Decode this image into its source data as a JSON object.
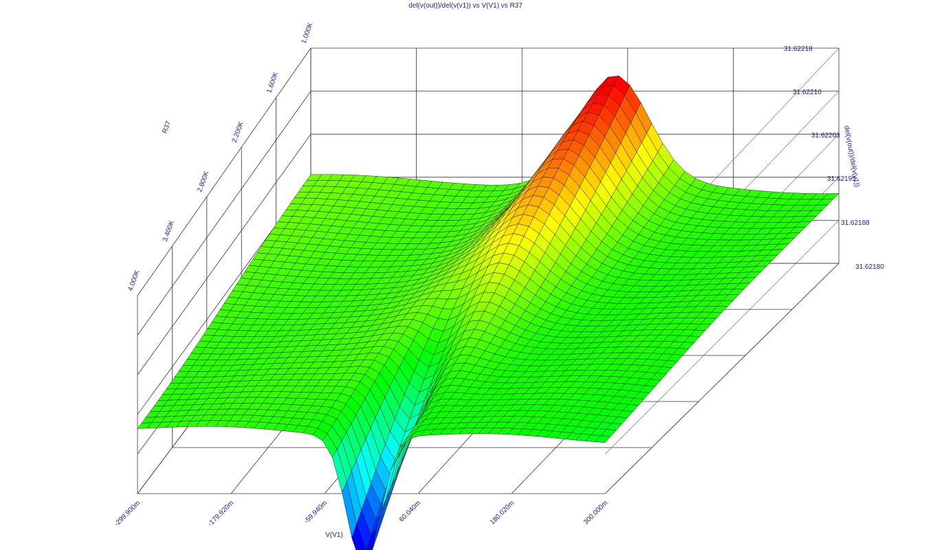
{
  "chart_data": {
    "type": "surface3d",
    "title": "del(v(out))/del(v(v1)) vs V(V1) vs R37",
    "xlabel": "V(V1)",
    "ylabel": "R37",
    "zlabel": "del(v(out))/del(v(v1))",
    "x_ticks": [
      "-299.900m",
      "-179.920m",
      "-59.940m",
      "60.040m",
      "180.020m",
      "300.000m"
    ],
    "y_ticks": [
      "1.000K",
      "1.600K",
      "2.200K",
      "2.800K",
      "3.400K",
      "4.000K"
    ],
    "z_ticks": [
      "31.62218",
      "31.62210",
      "31.62203",
      "31.62195",
      "31.62188",
      "31.62180"
    ],
    "xlim": [
      -0.2999,
      0.3
    ],
    "ylim": [
      1000,
      4000
    ],
    "zlim": [
      31.6218,
      31.62218
    ],
    "colormap": [
      "#0000ff",
      "#00ffff",
      "#00ff00",
      "#ffff00",
      "#ff0000"
    ],
    "surface_samples": [
      {
        "R37": 1000,
        "V(V1)": -0.2999,
        "value": 31.62195
      },
      {
        "R37": 1000,
        "V(V1)": 0.05,
        "value": 31.62212
      },
      {
        "R37": 1000,
        "V(V1)": 0.3,
        "value": 31.62192
      },
      {
        "R37": 4000,
        "V(V1)": -0.2999,
        "value": 31.62193
      },
      {
        "R37": 4000,
        "V(V1)": -0.01,
        "value": 31.6217
      },
      {
        "R37": 4000,
        "V(V1)": 0.3,
        "value": 31.62188
      }
    ]
  }
}
